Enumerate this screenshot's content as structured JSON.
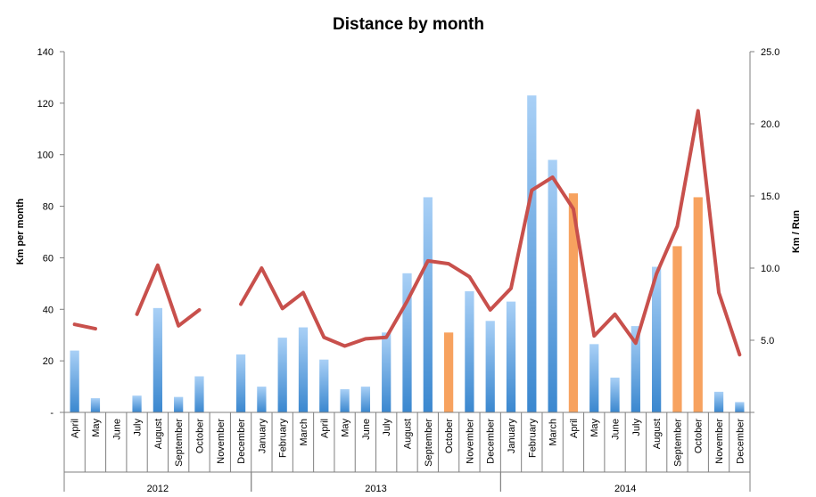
{
  "chart_data": {
    "type": "bar",
    "title": "Distance by month",
    "ylabel": "Km per month",
    "y2label": "Km / Run",
    "ylim": [
      0,
      140
    ],
    "y2lim": [
      0,
      25
    ],
    "y_ticks": [
      "-",
      "20",
      "40",
      "60",
      "80",
      "100",
      "120",
      "140"
    ],
    "y2_ticks": [
      "",
      "5.0",
      "10.0",
      "15.0",
      "20.0",
      "25.0"
    ],
    "grid": false,
    "categories": [
      "April",
      "May",
      "June",
      "July",
      "August",
      "September",
      "October",
      "November",
      "December",
      "January",
      "February",
      "March",
      "April",
      "May",
      "June",
      "July",
      "August",
      "September",
      "October",
      "November",
      "December",
      "January",
      "February",
      "March",
      "April",
      "May",
      "June",
      "July",
      "August",
      "September",
      "October",
      "November",
      "December"
    ],
    "years": [
      {
        "label": "2012",
        "start": 0,
        "end": 8
      },
      {
        "label": "2013",
        "start": 9,
        "end": 20
      },
      {
        "label": "2014",
        "start": 21,
        "end": 32
      }
    ],
    "series": [
      {
        "kind": "bar",
        "axis": "left",
        "values": [
          24,
          5.5,
          0,
          6.5,
          40.5,
          6,
          14,
          0,
          22.5,
          10,
          29,
          33,
          20.5,
          9,
          10,
          31,
          54,
          83.5,
          31,
          47,
          35.5,
          43,
          123,
          98,
          85,
          26.5,
          13.5,
          33.5,
          56.5,
          64.5,
          83.5,
          8,
          4
        ],
        "highlight": [
          18,
          24,
          29,
          30
        ]
      },
      {
        "kind": "line",
        "axis": "right",
        "values": [
          6.1,
          5.8,
          null,
          6.8,
          10.2,
          6.0,
          7.1,
          null,
          7.5,
          10.0,
          7.2,
          8.3,
          5.2,
          4.6,
          5.1,
          5.2,
          7.7,
          10.5,
          10.3,
          9.4,
          7.1,
          8.6,
          15.4,
          16.3,
          14.1,
          5.3,
          6.8,
          4.8,
          9.6,
          12.9,
          20.9,
          8.3,
          4.0
        ]
      }
    ],
    "colors": {
      "bar_top": "#a9d0f6",
      "bar_bottom": "#3a87cf",
      "bar_highlight": "#f7a25f",
      "line": "#c8504c",
      "axis": "#7f7f7f"
    }
  }
}
